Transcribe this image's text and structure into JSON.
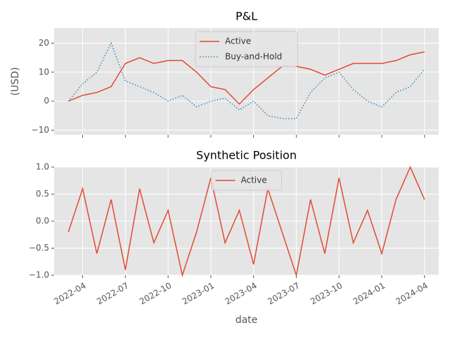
{
  "chart_data": [
    {
      "type": "line",
      "title": "P&L",
      "ylabel": "(USD)",
      "x": [
        "2022-03",
        "2022-04",
        "2022-05",
        "2022-06",
        "2022-07",
        "2022-08",
        "2022-09",
        "2022-10",
        "2022-11",
        "2022-12",
        "2023-01",
        "2023-02",
        "2023-03",
        "2023-04",
        "2023-05",
        "2023-06",
        "2023-07",
        "2023-08",
        "2023-09",
        "2023-10",
        "2023-11",
        "2023-12",
        "2024-01",
        "2024-02",
        "2024-03",
        "2024-04"
      ],
      "series": [
        {
          "name": "Active",
          "color": "#E24A33",
          "linestyle": "solid",
          "values": [
            0,
            2,
            3,
            5,
            13,
            15,
            13,
            14,
            14,
            10,
            5,
            4,
            -1,
            4,
            8,
            12,
            12,
            11,
            9,
            11,
            13,
            13,
            13,
            14,
            16,
            17
          ]
        },
        {
          "name": "Buy-and-Hold",
          "color": "#348ABD",
          "linestyle": "dotted",
          "values": [
            0,
            6,
            10,
            20,
            7,
            5,
            3,
            0,
            2,
            -2,
            0,
            1,
            -3,
            0,
            -5,
            -6,
            -6,
            3,
            8,
            10,
            4,
            0,
            -2,
            3,
            5,
            11
          ]
        }
      ],
      "xlim": [
        "2022-02",
        "2024-05"
      ],
      "ylim": [
        -11.6,
        25.2
      ],
      "yticks": [
        {
          "value": -10,
          "label": "−10"
        },
        0,
        10,
        20
      ],
      "grid": true,
      "legend": "upper center"
    },
    {
      "type": "line",
      "title": "Synthetic Position",
      "xlabel": "date",
      "x": [
        "2022-03",
        "2022-04",
        "2022-05",
        "2022-06",
        "2022-07",
        "2022-08",
        "2022-09",
        "2022-10",
        "2022-11",
        "2022-12",
        "2023-01",
        "2023-02",
        "2023-03",
        "2023-04",
        "2023-05",
        "2023-06",
        "2023-07",
        "2023-08",
        "2023-09",
        "2023-10",
        "2023-11",
        "2023-12",
        "2024-01",
        "2024-02",
        "2024-03",
        "2024-04"
      ],
      "series": [
        {
          "name": "Active",
          "color": "#E24A33",
          "linestyle": "solid",
          "values": [
            -0.2,
            0.6,
            -0.6,
            0.4,
            -0.9,
            0.6,
            -0.4,
            0.2,
            -1.0,
            -0.2,
            0.8,
            -0.4,
            0.2,
            -0.8,
            0.6,
            -0.2,
            -1.0,
            0.4,
            -0.6,
            0.8,
            -0.4,
            0.2,
            -0.6,
            0.4,
            1.0,
            0.4
          ]
        }
      ],
      "xlim": [
        "2022-02",
        "2024-05"
      ],
      "ylim": [
        -1,
        1
      ],
      "xticks": [
        "2022-04",
        "2022-07",
        "2022-10",
        "2023-01",
        "2023-04",
        "2023-07",
        "2023-10",
        "2024-01",
        "2024-04"
      ],
      "yticks": [
        {
          "value": -1,
          "label": "−1.0"
        },
        {
          "value": -0.5,
          "label": "−0.5"
        },
        {
          "value": 0,
          "label": "0.0"
        },
        {
          "value": 0.5,
          "label": "0.5"
        },
        {
          "value": 1,
          "label": "1.0"
        }
      ],
      "grid": true,
      "legend": "upper center"
    }
  ]
}
